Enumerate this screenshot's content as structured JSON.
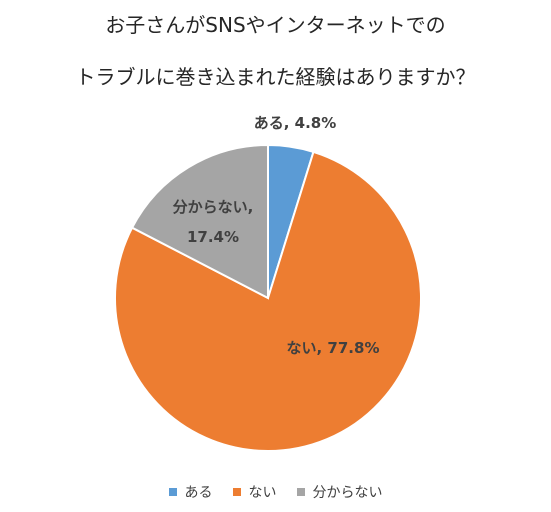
{
  "chart_data": {
    "type": "pie",
    "title_lines": [
      "お子さんがSNSやインターネットでの",
      "トラブルに巻き込まれた経験はありますか？"
    ],
    "categories": [
      "ある",
      "ない",
      "分からない"
    ],
    "values": [
      4.8,
      77.8,
      17.4
    ],
    "unit": "%",
    "colors": [
      "#5b9bd5",
      "#ed7d31",
      "#a5a5a5"
    ],
    "data_labels": [
      [
        "ある, 4.8%"
      ],
      [
        "ない, 77.8%"
      ],
      [
        "分からない,",
        "17.4%"
      ]
    ],
    "legend_position": "bottom",
    "start_angle": "12 o'clock, clockwise"
  },
  "legend": {
    "items": [
      {
        "label": "ある",
        "color": "#5b9bd5"
      },
      {
        "label": "ない",
        "color": "#ed7d31"
      },
      {
        "label": "分からない",
        "color": "#a5a5a5"
      }
    ]
  }
}
